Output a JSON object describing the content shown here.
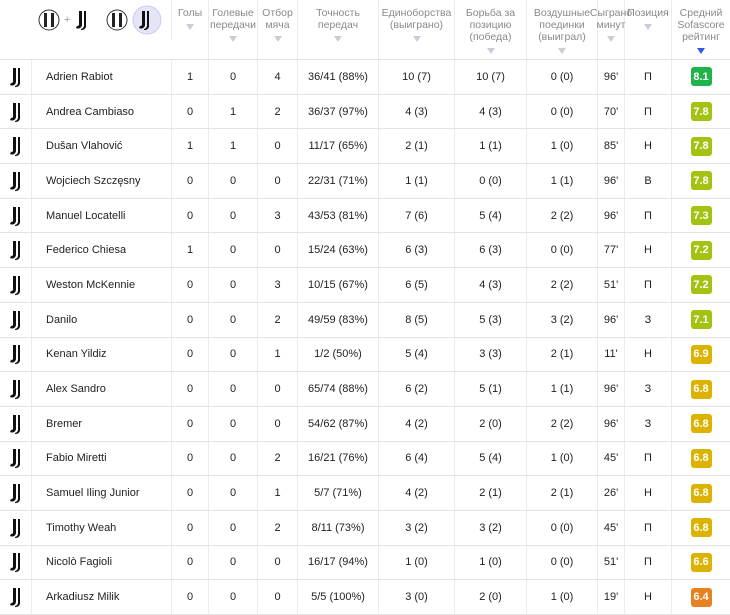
{
  "header": {
    "logo_separator": "+",
    "columns": [
      "Голы",
      "Голевые передачи",
      "Отбор мяча",
      "Точность передач",
      "Единоборства (выиграно)",
      "Борьба за позицию (победа)",
      "Воздушные поединки (выиграл)",
      "Сыграно минут",
      "Позиция",
      "Средний Sofascore рейтинг"
    ]
  },
  "table": {
    "rows": [
      [
        "Adrien Rabiot",
        "1",
        "0",
        "4",
        "36/41 (88%)",
        "10 (7)",
        "10 (7)",
        "0 (0)",
        "96'",
        "П",
        "8.1"
      ],
      [
        "Andrea Cambiaso",
        "0",
        "1",
        "2",
        "36/37 (97%)",
        "4 (3)",
        "4 (3)",
        "0 (0)",
        "70'",
        "П",
        "7.8"
      ],
      [
        "Dušan Vlahović",
        "1",
        "1",
        "0",
        "11/17 (65%)",
        "2 (1)",
        "1 (1)",
        "1 (0)",
        "85'",
        "Н",
        "7.8"
      ],
      [
        "Wojciech Szczęsny",
        "0",
        "0",
        "0",
        "22/31 (71%)",
        "1 (1)",
        "0 (0)",
        "1 (1)",
        "96'",
        "В",
        "7.8"
      ],
      [
        "Manuel Locatelli",
        "0",
        "0",
        "3",
        "43/53 (81%)",
        "7 (6)",
        "5 (4)",
        "2 (2)",
        "96'",
        "П",
        "7.3"
      ],
      [
        "Federico Chiesa",
        "1",
        "0",
        "0",
        "15/24 (63%)",
        "6 (3)",
        "6 (3)",
        "0 (0)",
        "77'",
        "Н",
        "7.2"
      ],
      [
        "Weston McKennie",
        "0",
        "0",
        "3",
        "10/15 (67%)",
        "6 (5)",
        "4 (3)",
        "2 (2)",
        "51'",
        "П",
        "7.2"
      ],
      [
        "Danilo",
        "0",
        "0",
        "2",
        "49/59 (83%)",
        "8 (5)",
        "5 (3)",
        "3 (2)",
        "96'",
        "З",
        "7.1"
      ],
      [
        "Kenan Yildiz",
        "0",
        "0",
        "1",
        "1/2 (50%)",
        "5 (4)",
        "3 (3)",
        "2 (1)",
        "11'",
        "Н",
        "6.9"
      ],
      [
        "Alex Sandro",
        "0",
        "0",
        "0",
        "65/74 (88%)",
        "6 (2)",
        "5 (1)",
        "1 (1)",
        "96'",
        "З",
        "6.8"
      ],
      [
        "Bremer",
        "0",
        "0",
        "0",
        "54/62 (87%)",
        "4 (2)",
        "2 (0)",
        "2 (2)",
        "96'",
        "З",
        "6.8"
      ],
      [
        "Fabio Miretti",
        "0",
        "0",
        "2",
        "16/21 (76%)",
        "6 (4)",
        "5 (4)",
        "1 (0)",
        "45'",
        "П",
        "6.8"
      ],
      [
        "Samuel Iling Junior",
        "0",
        "0",
        "1",
        "5/7 (71%)",
        "4 (2)",
        "2 (1)",
        "2 (1)",
        "26'",
        "Н",
        "6.8"
      ],
      [
        "Timothy Weah",
        "0",
        "0",
        "2",
        "8/11 (73%)",
        "3 (2)",
        "3 (2)",
        "0 (0)",
        "45'",
        "П",
        "6.8"
      ],
      [
        "Nicolò Fagioli",
        "0",
        "0",
        "0",
        "16/17 (94%)",
        "1 (0)",
        "1 (0)",
        "0 (0)",
        "51'",
        "П",
        "6.6"
      ],
      [
        "Arkadiusz Milik",
        "0",
        "0",
        "0",
        "5/5 (100%)",
        "3 (0)",
        "2 (0)",
        "1 (0)",
        "19'",
        "Н",
        "6.4"
      ]
    ]
  }
}
